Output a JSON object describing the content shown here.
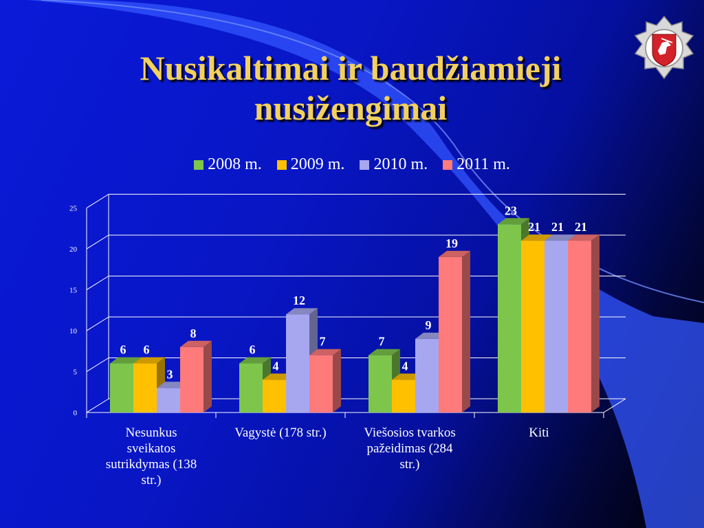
{
  "slide": {
    "title_line1": "Nusikaltimai ir baudžiamieji",
    "title_line2": "nusižengimai"
  },
  "emblem": {
    "name": "police-badge"
  },
  "chart_data": {
    "type": "bar",
    "title": "",
    "xlabel": "",
    "ylabel": "",
    "categories": [
      "Nesunkus sveikatos sutrikdymas (138 str.)",
      "Vagystė (178 str.)",
      "Viešosios tvarkos pažeidimas (284 str.)",
      "Kiti"
    ],
    "category_lines": [
      [
        "Nesunkus",
        "sveikatos",
        "sutrikdymas (138",
        "str.)"
      ],
      [
        "Vagystė (178 str.)"
      ],
      [
        "Viešosios tvarkos",
        "pažeidimas (284",
        "str.)"
      ],
      [
        "Kiti"
      ]
    ],
    "series": [
      {
        "name": "2008 m.",
        "values": [
          6,
          6,
          7,
          23
        ],
        "color": "#7dc64b"
      },
      {
        "name": "2009 m.",
        "values": [
          6,
          4,
          4,
          21
        ],
        "color": "#ffc000"
      },
      {
        "name": "2010 m.",
        "values": [
          3,
          12,
          9,
          21
        ],
        "color": "#a7a7f0"
      },
      {
        "name": "2011 m.",
        "values": [
          8,
          7,
          19,
          21
        ],
        "color": "#ff7a7a"
      }
    ],
    "ylim": [
      0,
      25
    ],
    "yticks": [
      0,
      5,
      10,
      15,
      20,
      25
    ],
    "grid": true,
    "legend_position": "top"
  }
}
